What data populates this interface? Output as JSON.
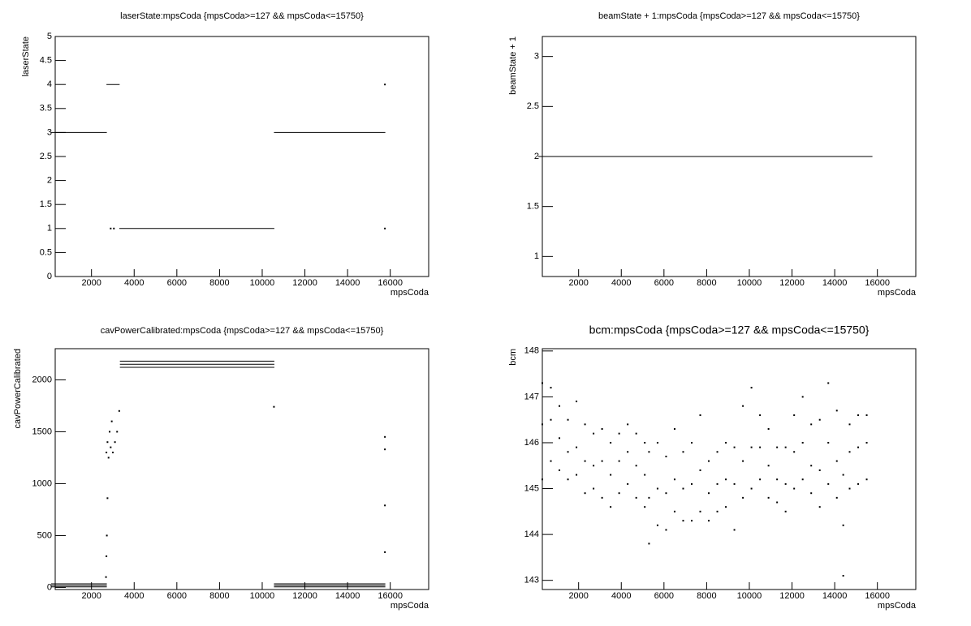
{
  "chart_data": [
    {
      "type": "line",
      "title": "laserState:mpsCoda {mpsCoda>=127 && mpsCoda<=15750}",
      "x_label": "mpsCoda",
      "y_label": "laserState",
      "color": "#000000",
      "xlim": [
        300,
        17800
      ],
      "xticks": [
        2000,
        4000,
        6000,
        8000,
        10000,
        12000,
        14000,
        16000
      ],
      "ylim": [
        0,
        5
      ],
      "yticks": [
        0,
        0.5,
        1,
        1.5,
        2,
        2.5,
        3,
        3.5,
        4,
        4.5,
        5
      ],
      "x": [
        127,
        2700,
        2710,
        2720,
        3300,
        3310,
        3320,
        10550,
        10560,
        10570,
        15750
      ],
      "values": [
        3,
        3,
        null,
        4,
        4,
        null,
        1,
        1,
        null,
        3,
        3
      ],
      "points": {
        "x": [
          2900,
          3050,
          15750,
          15750
        ],
        "y": [
          1,
          1,
          4,
          1
        ]
      }
    },
    {
      "type": "line",
      "title": "beamState + 1:mpsCoda {mpsCoda>=127 && mpsCoda<=15750}",
      "x_label": "mpsCoda",
      "y_label": "beamState + 1",
      "color": "#000000",
      "xlim": [
        300,
        17800
      ],
      "xticks": [
        2000,
        4000,
        6000,
        8000,
        10000,
        12000,
        14000,
        16000
      ],
      "ylim": [
        0.8,
        3.2
      ],
      "yticks": [
        1,
        1.5,
        2,
        2.5,
        3
      ],
      "x": [
        127,
        15750
      ],
      "values": [
        2,
        2
      ]
    },
    {
      "type": "line",
      "title": "cavPowerCalibrated:mpsCoda {mpsCoda>=127 && mpsCoda<=15750}",
      "x_label": "mpsCoda",
      "y_label": "cavPowerCalibrated",
      "color": "#000000",
      "xlim": [
        300,
        17800
      ],
      "xticks": [
        2000,
        4000,
        6000,
        8000,
        10000,
        12000,
        14000,
        16000
      ],
      "ylim": [
        -20,
        2300
      ],
      "yticks": [
        0,
        500,
        1000,
        1500,
        2000
      ],
      "x": [
        127,
        2700,
        2720,
        3350,
        10550,
        10570,
        15750
      ],
      "series": [
        {
          "values": [
            5,
            5,
            null,
            null,
            null,
            5,
            5
          ]
        },
        {
          "values": [
            20,
            20,
            null,
            null,
            null,
            20,
            20
          ]
        },
        {
          "values": [
            35,
            35,
            null,
            null,
            null,
            35,
            35
          ]
        },
        {
          "values": [
            null,
            null,
            null,
            2120,
            2120,
            null,
            null
          ]
        },
        {
          "values": [
            null,
            null,
            null,
            2150,
            2150,
            null,
            null
          ]
        },
        {
          "values": [
            null,
            null,
            null,
            2180,
            2180,
            null,
            null
          ]
        }
      ],
      "points": {
        "x": [
          2700,
          2750,
          2800,
          2850,
          2900,
          2950,
          3000,
          3100,
          3200,
          3300,
          2720,
          2700,
          2680,
          2750,
          10550,
          15750,
          15750,
          15750,
          15750
        ],
        "y": [
          1300,
          1400,
          1250,
          1500,
          1350,
          1600,
          1300,
          1400,
          1500,
          1700,
          500,
          300,
          100,
          860,
          1740,
          1450,
          1330,
          790,
          340
        ]
      }
    },
    {
      "type": "scatter",
      "title": "bcm:mpsCoda {mpsCoda>=127 && mpsCoda<=15750}",
      "x_label": "mpsCoda",
      "y_label": "bcm",
      "color": "#000000",
      "xlim": [
        300,
        17800
      ],
      "xticks": [
        2000,
        4000,
        6000,
        8000,
        10000,
        12000,
        14000,
        16000
      ],
      "ylim": [
        142.8,
        148.05
      ],
      "yticks": [
        143,
        144,
        145,
        146,
        147,
        148
      ],
      "points": {
        "x": [
          300,
          300,
          300,
          700,
          700,
          700,
          1100,
          1100,
          1100,
          1500,
          1500,
          1500,
          1900,
          1900,
          1900,
          2300,
          2300,
          2300,
          2700,
          2700,
          2700,
          3100,
          3100,
          3100,
          3500,
          3500,
          3500,
          3900,
          3900,
          3900,
          4300,
          4300,
          4300,
          4700,
          4700,
          4700,
          5100,
          5100,
          5100,
          5300,
          5300,
          5300,
          5700,
          5700,
          5700,
          6100,
          6100,
          6100,
          6500,
          6500,
          6500,
          6900,
          6900,
          6900,
          7300,
          7300,
          7300,
          7700,
          7700,
          7700,
          8100,
          8100,
          8100,
          8500,
          8500,
          8500,
          8900,
          8900,
          8900,
          9300,
          9300,
          9300,
          9700,
          9700,
          9700,
          10100,
          10100,
          10100,
          10500,
          10500,
          10500,
          10900,
          10900,
          10900,
          11300,
          11300,
          11300,
          11700,
          11700,
          11700,
          12100,
          12100,
          12100,
          12500,
          12500,
          12500,
          12900,
          12900,
          12900,
          13300,
          13300,
          13300,
          13700,
          13700,
          13700,
          14100,
          14100,
          14100,
          14400,
          14400,
          14400,
          14700,
          14700,
          14700,
          15100,
          15100,
          15100,
          15500,
          15500,
          15500
        ],
        "y": [
          145.2,
          146.4,
          147.3,
          145.6,
          146.5,
          147.2,
          145.4,
          146.1,
          146.8,
          145.2,
          145.8,
          146.5,
          145.3,
          145.9,
          146.9,
          144.9,
          145.6,
          146.4,
          145.0,
          145.5,
          146.2,
          144.8,
          145.6,
          146.3,
          144.6,
          145.3,
          146.0,
          144.9,
          145.6,
          146.2,
          145.1,
          145.8,
          146.4,
          144.8,
          145.5,
          146.2,
          144.6,
          145.3,
          146.0,
          143.8,
          144.8,
          145.8,
          144.2,
          145.0,
          146.0,
          144.1,
          144.9,
          145.7,
          144.5,
          145.2,
          146.3,
          144.3,
          145.0,
          145.8,
          144.3,
          145.1,
          146.0,
          144.5,
          145.4,
          146.6,
          144.3,
          144.9,
          145.6,
          144.5,
          145.1,
          145.8,
          144.6,
          145.2,
          146.0,
          144.1,
          145.1,
          145.9,
          144.8,
          145.6,
          146.8,
          145.0,
          145.9,
          147.2,
          145.2,
          145.9,
          146.6,
          144.8,
          145.5,
          146.3,
          144.7,
          145.2,
          145.9,
          144.5,
          145.1,
          145.9,
          145.0,
          145.8,
          146.6,
          145.2,
          146.0,
          147.0,
          144.9,
          145.5,
          146.4,
          144.6,
          145.4,
          146.5,
          145.1,
          146.0,
          147.3,
          144.8,
          145.6,
          146.7,
          143.1,
          144.2,
          145.3,
          145.0,
          145.8,
          146.4,
          145.1,
          145.9,
          146.6,
          145.2,
          146.0,
          146.6
        ]
      }
    }
  ]
}
